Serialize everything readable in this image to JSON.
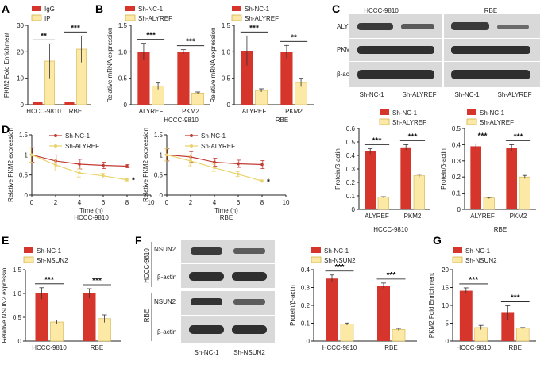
{
  "colors": {
    "red": "#d6352b",
    "yellow": "#fde9a6",
    "yellow_edge": "#d4b24a",
    "blot_bg": "#d9d9d9",
    "band": "#3a3a3a",
    "line_red": "#c23a34",
    "line_yel": "#e7d36a"
  },
  "labels": {
    "A": "A",
    "B": "B",
    "C": "C",
    "D": "D",
    "E": "E",
    "F": "F",
    "G": "G",
    "legend_igg": "IgG",
    "legend_ip": "IP",
    "legend_shnc": "Sh-NC-1",
    "legend_shalyref": "Sh-ALYREF",
    "legend_shnsun2": "Sh-NSUN2",
    "hccc": "HCCC-9810",
    "rbe": "RBE",
    "alyref": "ALYREF",
    "pkm2": "PKM2",
    "bactin": "β-actin",
    "nsun2": "NSUN2",
    "time": "Time (h)",
    "star1": "*",
    "star3": "***",
    "star2": "**"
  },
  "chart_data": [
    {
      "id": "A",
      "type": "bar",
      "ylabel": "PKM2 Fold Enrichment",
      "ylim": [
        0,
        30
      ],
      "yticks": [
        0,
        10,
        20,
        30
      ],
      "categories": [
        "HCCC-9810",
        "RBE"
      ],
      "series": [
        {
          "name": "IgG",
          "values": [
            1,
            1
          ],
          "err": [
            0,
            0
          ]
        },
        {
          "name": "IP",
          "values": [
            16.5,
            21
          ],
          "err": [
            6.5,
            5
          ]
        }
      ],
      "sig": [
        "**",
        "***"
      ]
    },
    {
      "id": "B1",
      "type": "bar",
      "ylabel": "Relative mRNA expression",
      "xlabel": "HCCC-9810",
      "ylim": [
        0,
        1.5
      ],
      "yticks": [
        0,
        0.5,
        1.0,
        1.5
      ],
      "categories": [
        "ALYREF",
        "PKM2"
      ],
      "series": [
        {
          "name": "Sh-NC-1",
          "values": [
            1.0,
            1.0
          ],
          "err": [
            0.16,
            0.04
          ]
        },
        {
          "name": "Sh-ALYREF",
          "values": [
            0.35,
            0.22
          ],
          "err": [
            0.06,
            0.02
          ]
        }
      ],
      "sig": [
        "***",
        "***"
      ]
    },
    {
      "id": "B2",
      "type": "bar",
      "ylabel": "Relative mRNA expression",
      "xlabel": "RBE",
      "ylim": [
        0,
        1.5
      ],
      "yticks": [
        0,
        0.5,
        1.0,
        1.5
      ],
      "categories": [
        "ALYREF",
        "PKM2"
      ],
      "series": [
        {
          "name": "Sh-NC-1",
          "values": [
            1.02,
            1.0
          ],
          "err": [
            0.28,
            0.12
          ]
        },
        {
          "name": "Sh-ALYREF",
          "values": [
            0.27,
            0.42
          ],
          "err": [
            0.03,
            0.08
          ]
        }
      ],
      "sig": [
        "***",
        "**"
      ]
    },
    {
      "id": "C1",
      "type": "bar",
      "ylabel": "Protein/β-actin",
      "ylim": [
        0,
        0.6
      ],
      "yticks": [
        0,
        0.1,
        0.2,
        0.3,
        0.4,
        0.5,
        0.6
      ],
      "categories": [
        "ALYREF",
        "PKM2"
      ],
      "series": [
        {
          "name": "Sh-NC-1",
          "values": [
            0.43,
            0.46
          ],
          "err": [
            0.02,
            0.02
          ]
        },
        {
          "name": "Sh-ALYREF",
          "values": [
            0.09,
            0.25
          ],
          "err": [
            0.004,
            0.01
          ]
        }
      ],
      "sig": [
        "***",
        "***"
      ]
    },
    {
      "id": "C2",
      "type": "bar",
      "ylabel": "Protein/β-actin",
      "ylim": [
        0,
        0.5
      ],
      "yticks": [
        0,
        0.1,
        0.2,
        0.3,
        0.4,
        0.5
      ],
      "categories": [
        "ALYREF",
        "PKM2"
      ],
      "series": [
        {
          "name": "Sh-NC-1",
          "values": [
            0.39,
            0.38
          ],
          "err": [
            0.015,
            0.02
          ]
        },
        {
          "name": "Sh-ALYREF",
          "values": [
            0.07,
            0.2
          ],
          "err": [
            0.004,
            0.01
          ]
        }
      ],
      "sig": [
        "***",
        "***"
      ]
    },
    {
      "id": "D1",
      "type": "line",
      "ylabel": "Relative PKM2 expression",
      "xlabel": "Time (h)",
      "subtitle": "HCCC-9810",
      "xlim": [
        0,
        10
      ],
      "xticks": [
        0,
        2,
        4,
        6,
        8,
        10
      ],
      "ylim": [
        0,
        1.5
      ],
      "yticks": [
        0,
        0.5,
        1.0,
        1.5
      ],
      "series": [
        {
          "name": "Sh-NC-1",
          "x": [
            0,
            2,
            4,
            6,
            8
          ],
          "values": [
            1.0,
            0.85,
            0.77,
            0.74,
            0.72
          ],
          "err": [
            0.18,
            0.15,
            0.12,
            0.08,
            0.04
          ]
        },
        {
          "name": "Sh-ALYREF",
          "x": [
            0,
            2,
            4,
            6,
            8
          ],
          "values": [
            1.0,
            0.75,
            0.55,
            0.48,
            0.38
          ],
          "err": [
            0.18,
            0.15,
            0.1,
            0.06,
            0.03
          ]
        }
      ],
      "sig": "*"
    },
    {
      "id": "D2",
      "type": "line",
      "ylabel": "Relative PKM2 expression",
      "xlabel": "Time (h)",
      "subtitle": "RBE",
      "xlim": [
        0,
        10
      ],
      "xticks": [
        0,
        2,
        4,
        6,
        8,
        10
      ],
      "ylim": [
        0,
        1.5
      ],
      "yticks": [
        0,
        0.5,
        1.0,
        1.5
      ],
      "series": [
        {
          "name": "Sh-NC-1",
          "x": [
            0,
            2,
            4,
            6,
            8
          ],
          "values": [
            1.0,
            0.95,
            0.82,
            0.78,
            0.76
          ],
          "err": [
            0.15,
            0.13,
            0.1,
            0.09,
            0.1
          ]
        },
        {
          "name": "Sh-ALYREF",
          "x": [
            0,
            2,
            4,
            6,
            8
          ],
          "values": [
            1.0,
            0.85,
            0.68,
            0.52,
            0.35
          ],
          "err": [
            0.15,
            0.12,
            0.09,
            0.06,
            0.03
          ]
        }
      ],
      "sig": "*"
    },
    {
      "id": "E",
      "type": "bar",
      "ylabel": "Relative NSUN2 expressio",
      "ylim": [
        0,
        1.5
      ],
      "yticks": [
        0,
        0.5,
        1.0,
        1.5
      ],
      "categories": [
        "HCCC-9810",
        "RBE"
      ],
      "series": [
        {
          "name": "Sh-NC-1",
          "values": [
            1.0,
            1.0
          ],
          "err": [
            0.12,
            0.1
          ]
        },
        {
          "name": "Sh-NSUN2",
          "values": [
            0.4,
            0.47
          ],
          "err": [
            0.04,
            0.08
          ]
        }
      ],
      "sig": [
        "***",
        "***"
      ]
    },
    {
      "id": "F",
      "type": "bar",
      "ylabel": "Protein/β-actin",
      "ylim": [
        0,
        0.4
      ],
      "yticks": [
        0,
        0.1,
        0.2,
        0.3,
        0.4
      ],
      "categories": [
        "HCCC-9810",
        "RBE"
      ],
      "series": [
        {
          "name": "Sh-NC-1",
          "values": [
            0.35,
            0.31
          ],
          "err": [
            0.02,
            0.015
          ]
        },
        {
          "name": "Sh-NSUN2",
          "values": [
            0.095,
            0.065
          ],
          "err": [
            0.006,
            0.006
          ]
        }
      ],
      "sig": [
        "***",
        "***"
      ]
    },
    {
      "id": "G",
      "type": "bar",
      "ylabel": "PKM2 Fold Enrichment",
      "ylim": [
        0,
        20
      ],
      "yticks": [
        0,
        5,
        10,
        15,
        20
      ],
      "categories": [
        "HCCC-9810",
        "RBE"
      ],
      "series": [
        {
          "name": "Sh-NC-1",
          "values": [
            14.1,
            7.9
          ],
          "err": [
            0.8,
            2.0
          ]
        },
        {
          "name": "Sh-NSUN2",
          "values": [
            3.8,
            3.6
          ],
          "err": [
            0.6,
            0.2
          ]
        }
      ],
      "sig": [
        "***",
        "***"
      ]
    }
  ]
}
